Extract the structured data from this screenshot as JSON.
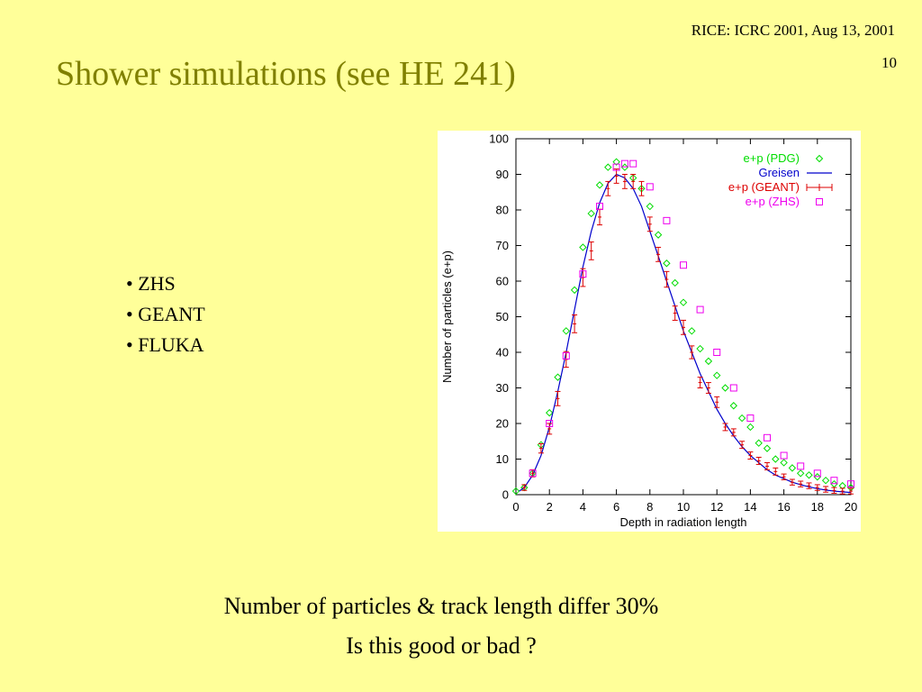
{
  "slide": {
    "header_ref": "RICE: ICRC 2001, Aug 13, 2001",
    "slide_number": "10",
    "title": "Shower simulations (see HE 241)",
    "bullets": [
      "ZHS",
      "GEANT",
      "FLUKA"
    ],
    "bottom_line1": "Number of particles & track length differ 30%",
    "bottom_line2": "Is this good or bad ?"
  },
  "colors": {
    "background": "#ffff99",
    "title": "#808000",
    "pdg": "#00dd00",
    "greisen": "#0000cc",
    "geant": "#dd0000",
    "zhs": "#ee00ee"
  },
  "chart_data": {
    "type": "scatter",
    "title": "",
    "xlabel": "Depth in radiation length",
    "ylabel": "Number of particles (e+p)",
    "xlim": [
      0,
      20
    ],
    "ylim": [
      0,
      100
    ],
    "xticks": [
      0,
      2,
      4,
      6,
      8,
      10,
      12,
      14,
      16,
      18,
      20
    ],
    "yticks": [
      0,
      10,
      20,
      30,
      40,
      50,
      60,
      70,
      80,
      90,
      100
    ],
    "grid": false,
    "legend_position": "top-right",
    "series": [
      {
        "name": "e+p (PDG)",
        "marker": "diamond",
        "color": "#00dd00",
        "x": [
          0,
          0.5,
          1,
          1.5,
          2,
          2.5,
          3,
          3.5,
          4,
          4.5,
          5,
          5.5,
          6,
          6.5,
          7,
          7.5,
          8,
          8.5,
          9,
          9.5,
          10,
          10.5,
          11,
          11.5,
          12,
          12.5,
          13,
          13.5,
          14,
          14.5,
          15,
          15.5,
          16,
          16.5,
          17,
          17.5,
          18,
          18.5,
          19,
          19.5,
          20
        ],
        "y": [
          1,
          2,
          6,
          14,
          23,
          33,
          46,
          57.5,
          69.5,
          79,
          87,
          92,
          93.5,
          92,
          89,
          86,
          81,
          73,
          65,
          59.5,
          54,
          46,
          41,
          37.5,
          33.5,
          30,
          25,
          21.5,
          19,
          14.5,
          13,
          10,
          9,
          7.5,
          6,
          5.5,
          5,
          4,
          3,
          2.5,
          2
        ]
      },
      {
        "name": "Greisen",
        "marker": "line",
        "color": "#0000cc",
        "x": [
          0.2,
          0.5,
          1,
          1.5,
          2,
          2.5,
          3,
          3.5,
          4,
          4.5,
          5,
          5.5,
          6,
          6.5,
          7,
          7.5,
          8,
          8.5,
          9,
          9.5,
          10,
          10.5,
          11,
          11.5,
          12,
          12.5,
          13,
          13.5,
          14,
          14.5,
          15,
          15.5,
          16,
          16.5,
          17,
          17.5,
          18,
          18.5,
          19,
          19.5,
          20
        ],
        "y": [
          1,
          2,
          5.5,
          11,
          19,
          29,
          40,
          52,
          64,
          74,
          82,
          87.5,
          90,
          89,
          86,
          81,
          74,
          67,
          60,
          53,
          46,
          40,
          34,
          29,
          24,
          20,
          16.5,
          13.5,
          11,
          9,
          7,
          5.5,
          4.5,
          3.5,
          2.8,
          2.2,
          1.7,
          1.3,
          1,
          0.8,
          0.6
        ]
      },
      {
        "name": "e+p (GEANT)",
        "marker": "errorbar",
        "color": "#dd0000",
        "x": [
          0.5,
          1,
          1.5,
          2,
          2.5,
          3,
          3.5,
          4,
          4.5,
          5,
          5.5,
          6,
          6.5,
          7,
          7.5,
          8,
          8.5,
          9,
          9.5,
          10,
          10.5,
          11,
          11.5,
          12,
          12.5,
          13,
          13.5,
          14,
          14.5,
          15,
          15.5,
          16,
          16.5,
          17,
          17.5,
          18,
          18.5,
          19,
          19.5,
          20
        ],
        "y": [
          2,
          6,
          13,
          18.5,
          27,
          38,
          48,
          61,
          68.5,
          78,
          86,
          89.5,
          88,
          88,
          86,
          76,
          67.5,
          60.5,
          51,
          47,
          40,
          31.5,
          30,
          26,
          19,
          17.5,
          14,
          11,
          9.5,
          8,
          6.5,
          5,
          3.5,
          3,
          2.5,
          2,
          1.5,
          1.2,
          1,
          1
        ],
        "err": [
          0.8,
          1,
          1.3,
          1.5,
          2,
          2.2,
          2.5,
          2.5,
          2.5,
          2.2,
          2,
          2,
          2,
          2,
          2,
          2,
          2,
          2.2,
          2,
          2,
          1.8,
          1.5,
          1.5,
          1.5,
          1,
          1,
          1,
          1,
          1,
          1,
          1,
          0.8,
          0.8,
          0.8,
          0.8,
          0.8,
          0.8,
          0.8,
          0.8,
          0.8
        ]
      },
      {
        "name": "e+p (ZHS)",
        "marker": "square",
        "color": "#ee00ee",
        "x": [
          1,
          2,
          3,
          4,
          5,
          6,
          6.5,
          7,
          8,
          9,
          10,
          11,
          12,
          13,
          14,
          15,
          16,
          17,
          18,
          19,
          20
        ],
        "y": [
          6,
          20,
          39,
          62,
          81,
          92,
          93,
          93,
          86.5,
          77,
          64.5,
          52,
          40,
          30,
          21.5,
          16,
          11,
          8,
          6,
          4,
          3
        ]
      }
    ]
  }
}
